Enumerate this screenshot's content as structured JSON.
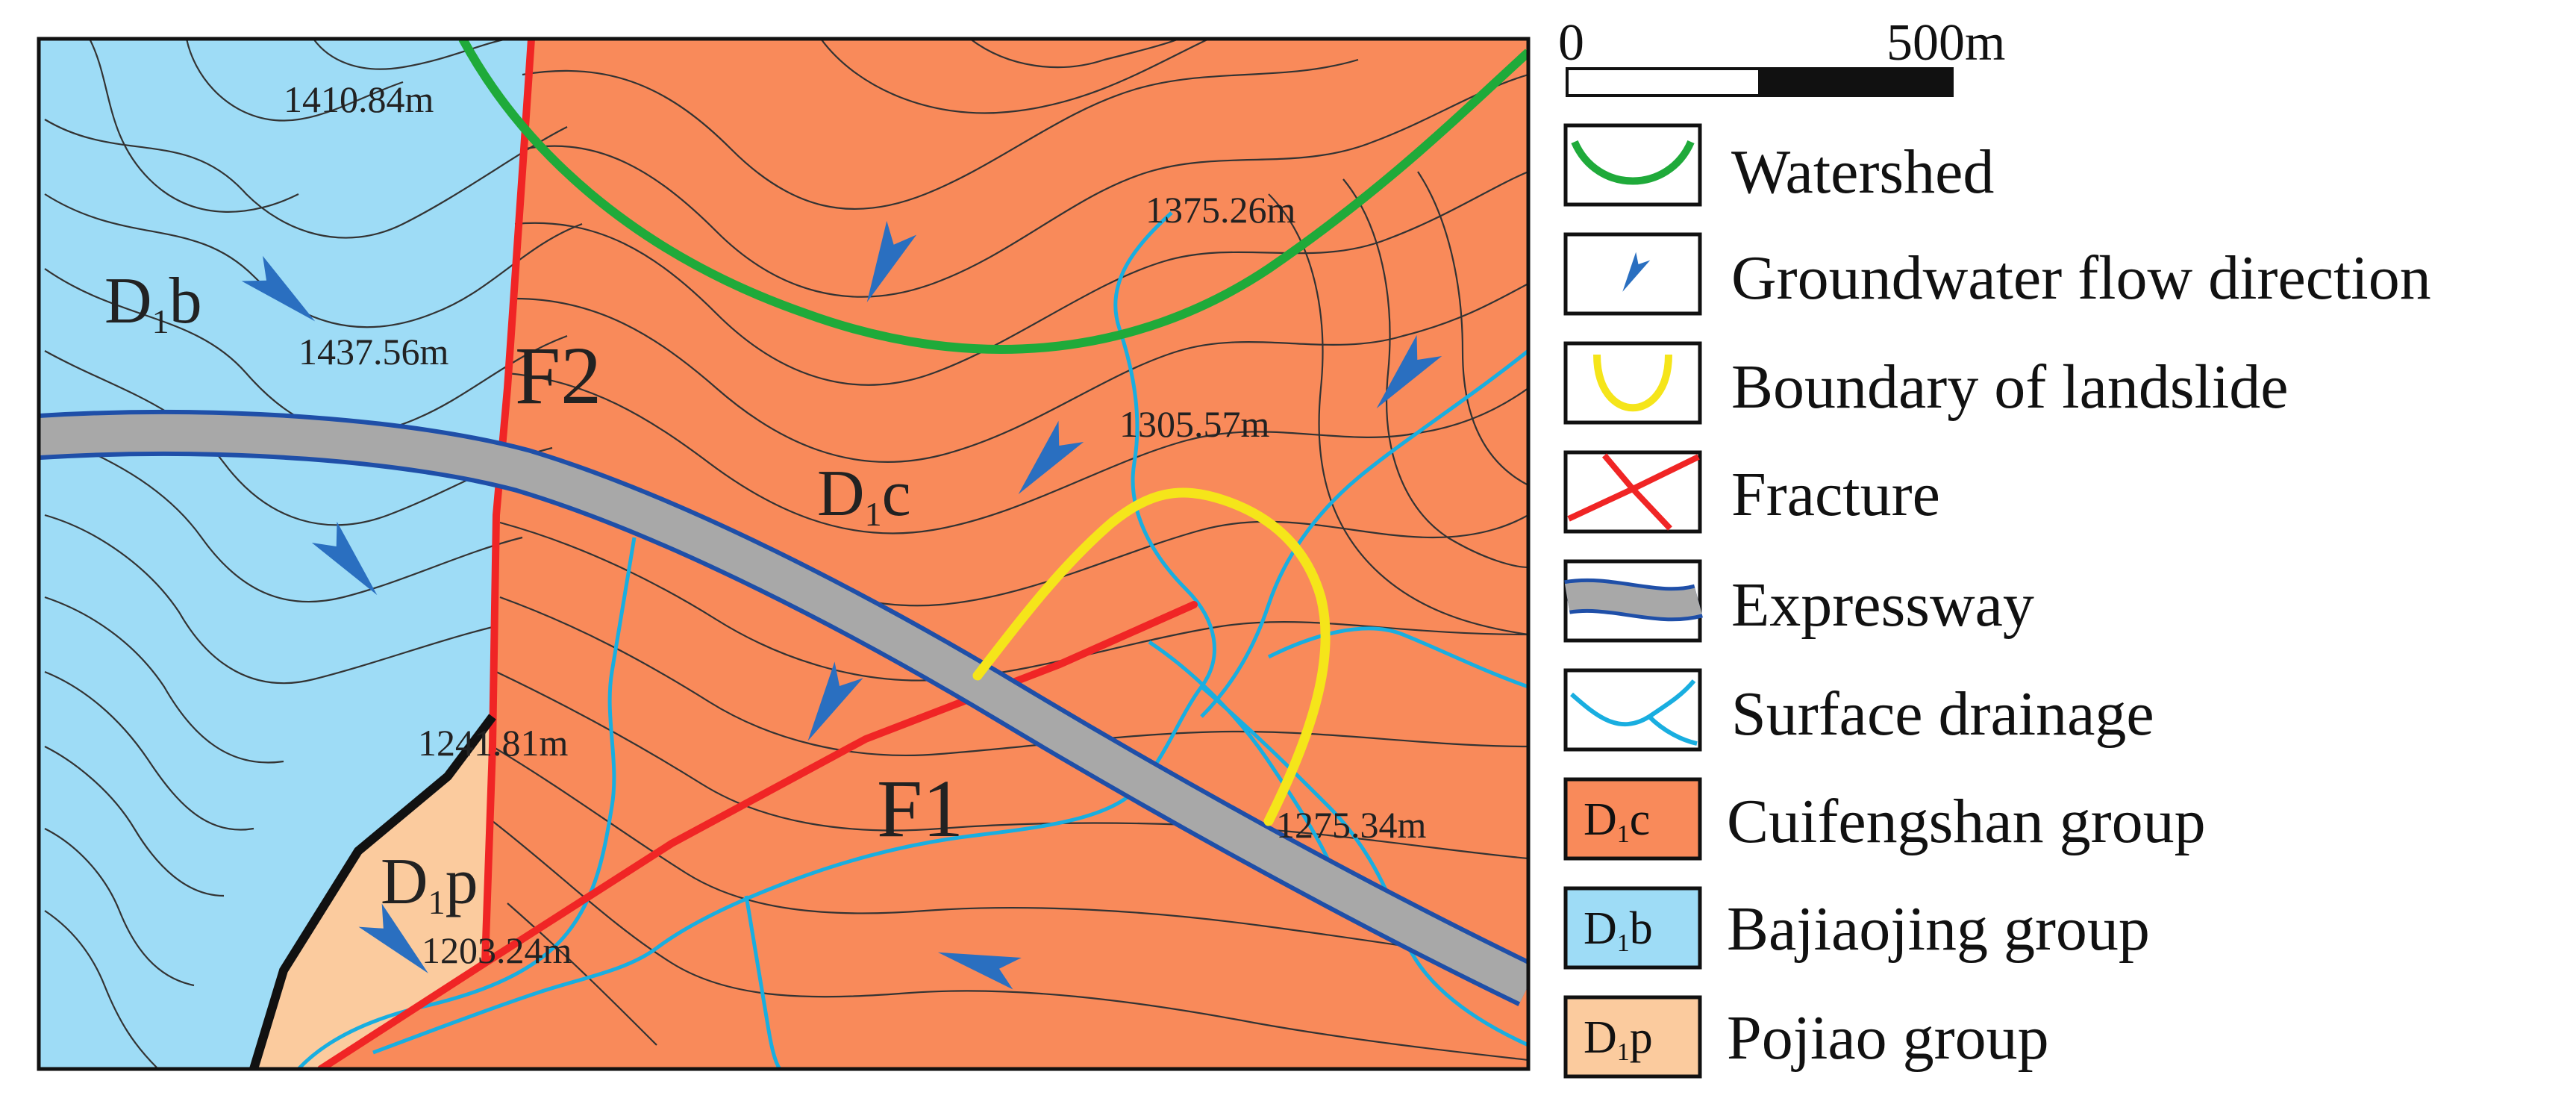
{
  "colors": {
    "cuifengshan": "#f98a5a",
    "bajiaojing": "#9edcf6",
    "pojiao": "#fbcb9e",
    "watershed": "#1faa3a",
    "fracture": "#f02525",
    "landslide": "#f5e51a",
    "expressway_fill": "#a8a8a8",
    "expressway_edge": "#1f4fa8",
    "drainage": "#19aee0",
    "arrow": "#2a6fc0",
    "contour": "#333333"
  },
  "map": {
    "units": {
      "d1b": {
        "main": "D",
        "sub": "1",
        "suffix": "b"
      },
      "d1c": {
        "main": "D",
        "sub": "1",
        "suffix": "c"
      },
      "d1p": {
        "main": "D",
        "sub": "1",
        "suffix": "p"
      }
    },
    "faults": {
      "f1": "F1",
      "f2": "F2"
    },
    "elevations": {
      "e1410": "1410.84m",
      "e1437": "1437.56m",
      "e1375": "1375.26m",
      "e1305": "1305.57m",
      "e1241": "1241.81m",
      "e1275": "1275.34m",
      "e1203": "1203.24m"
    }
  },
  "scale_bar": {
    "zero": "0",
    "max": "500m"
  },
  "legend": [
    {
      "key": "watershed",
      "label": "Watershed"
    },
    {
      "key": "flow",
      "label": "Groundwater flow direction"
    },
    {
      "key": "landslide",
      "label": "Boundary of landslide"
    },
    {
      "key": "fracture",
      "label": "Fracture"
    },
    {
      "key": "expressway",
      "label": "Expressway"
    },
    {
      "key": "drainage",
      "label": "Surface drainage"
    },
    {
      "key": "d1c",
      "label": "Cuifengshan group",
      "code_main": "D",
      "code_sub": "1",
      "code_suffix": "c"
    },
    {
      "key": "d1b",
      "label": "Bajiaojing group",
      "code_main": "D",
      "code_sub": "1",
      "code_suffix": "b"
    },
    {
      "key": "d1p",
      "label": "Pojiao group",
      "code_main": "D",
      "code_sub": "1",
      "code_suffix": "p"
    }
  ]
}
